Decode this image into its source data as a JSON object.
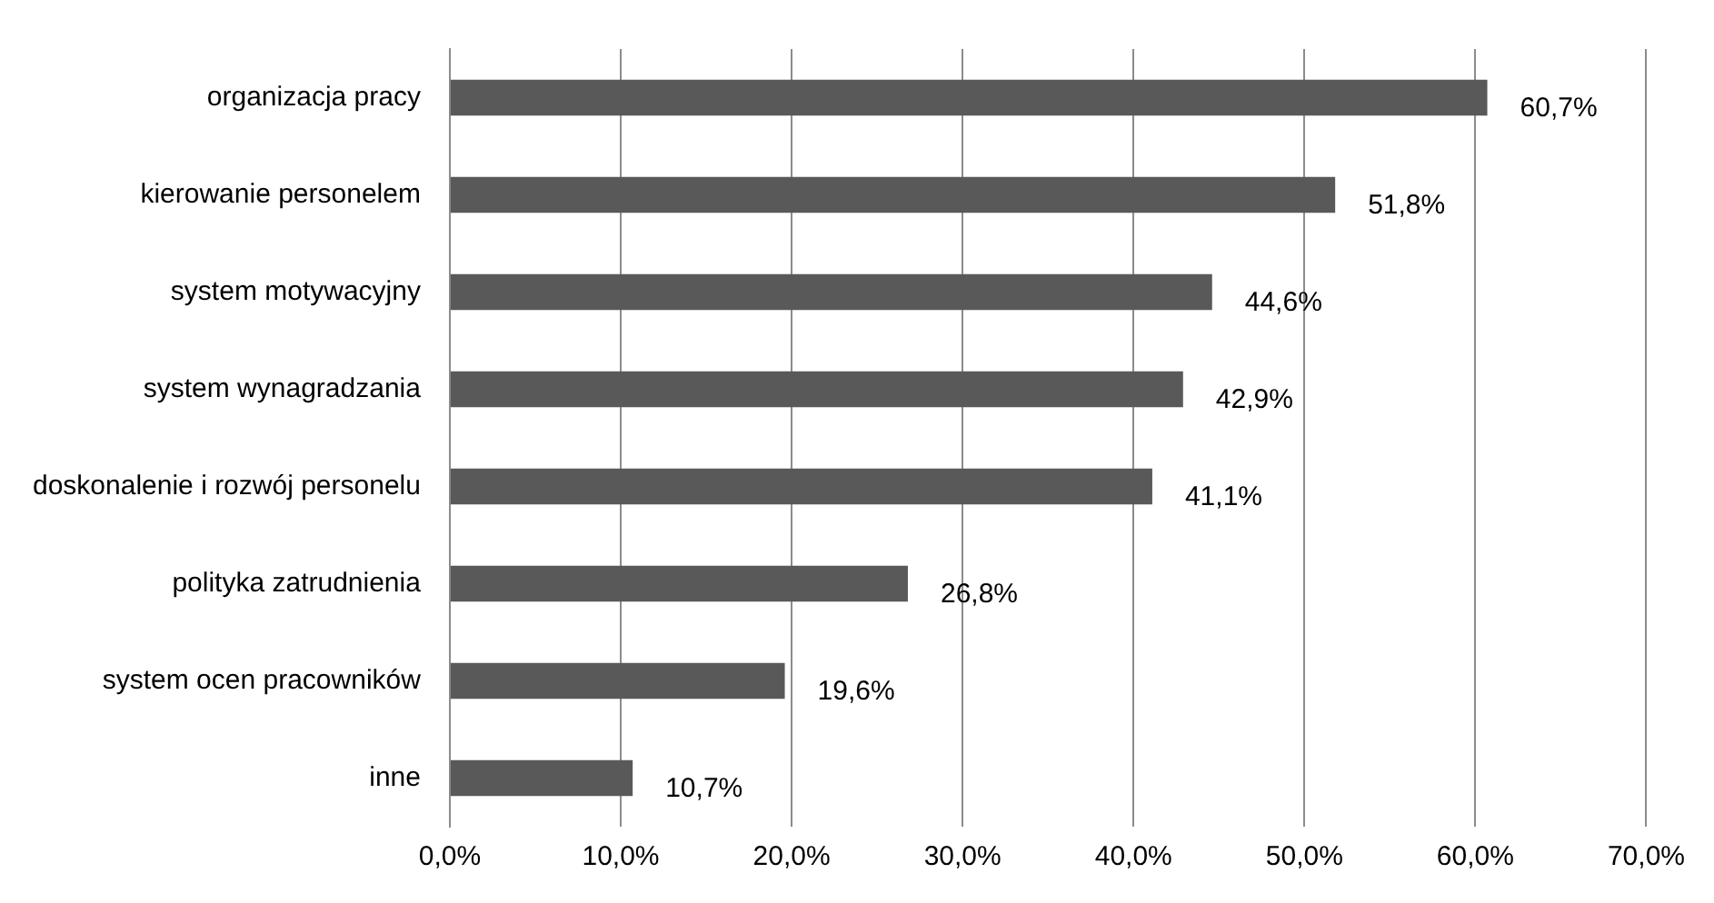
{
  "chart_data": {
    "type": "bar",
    "orientation": "horizontal",
    "categories": [
      "organizacja pracy",
      "kierowanie personelem",
      "system motywacyjny",
      "system wynagradzania",
      "doskonalenie i rozwój personelu",
      "polityka zatrudnienia",
      "system ocen pracowników",
      "inne"
    ],
    "values": [
      60.7,
      51.8,
      44.6,
      42.9,
      41.1,
      26.8,
      19.6,
      10.7
    ],
    "value_labels": [
      "60,7%",
      "51,8%",
      "44,6%",
      "42,9%",
      "41,1%",
      "26,8%",
      "19,6%",
      "10,7%"
    ],
    "color": "#595959",
    "xlim": [
      0,
      70
    ],
    "xticks": [
      {
        "value": 0,
        "label": "0,0%"
      },
      {
        "value": 10,
        "label": "10,0%"
      },
      {
        "value": 20,
        "label": "20,0%"
      },
      {
        "value": 30,
        "label": "30,0%"
      },
      {
        "value": 40,
        "label": "40,0%"
      },
      {
        "value": 50,
        "label": "50,0%"
      },
      {
        "value": 60,
        "label": "60,0%"
      },
      {
        "value": 70,
        "label": "70,0%"
      }
    ],
    "grid": "x",
    "legend": false
  }
}
